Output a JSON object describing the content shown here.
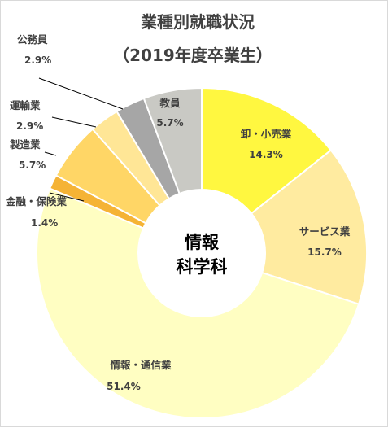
{
  "chart_data": {
    "type": "pie",
    "title": "業種別就職状況",
    "subtitle": "（2019年度卒業生）",
    "center_label": [
      "情報",
      "科学科"
    ],
    "start_angle_deg": 0,
    "slices": [
      {
        "label": "卸・小売業",
        "value": 14.3,
        "value_text": "14.3%",
        "color": "#FFF740"
      },
      {
        "label": "サービス業",
        "value": 15.7,
        "value_text": "15.7%",
        "color": "#FFEBA0"
      },
      {
        "label": "情報・通信業",
        "value": 51.4,
        "value_text": "51.4%",
        "color": "#FFFEC2"
      },
      {
        "label": "金融・保険業",
        "value": 1.4,
        "value_text": "1.4%",
        "color": "#F5B335"
      },
      {
        "label": "製造業",
        "value": 5.7,
        "value_text": "5.7%",
        "color": "#FFD666"
      },
      {
        "label": "運輸業",
        "value": 2.9,
        "value_text": "2.9%",
        "color": "#FFE696"
      },
      {
        "label": "公務員",
        "value": 2.9,
        "value_text": "2.9%",
        "color": "#A6A6A6"
      },
      {
        "label": "教員",
        "value": 5.7,
        "value_text": "5.7%",
        "color": "#C9C9C4"
      }
    ]
  }
}
